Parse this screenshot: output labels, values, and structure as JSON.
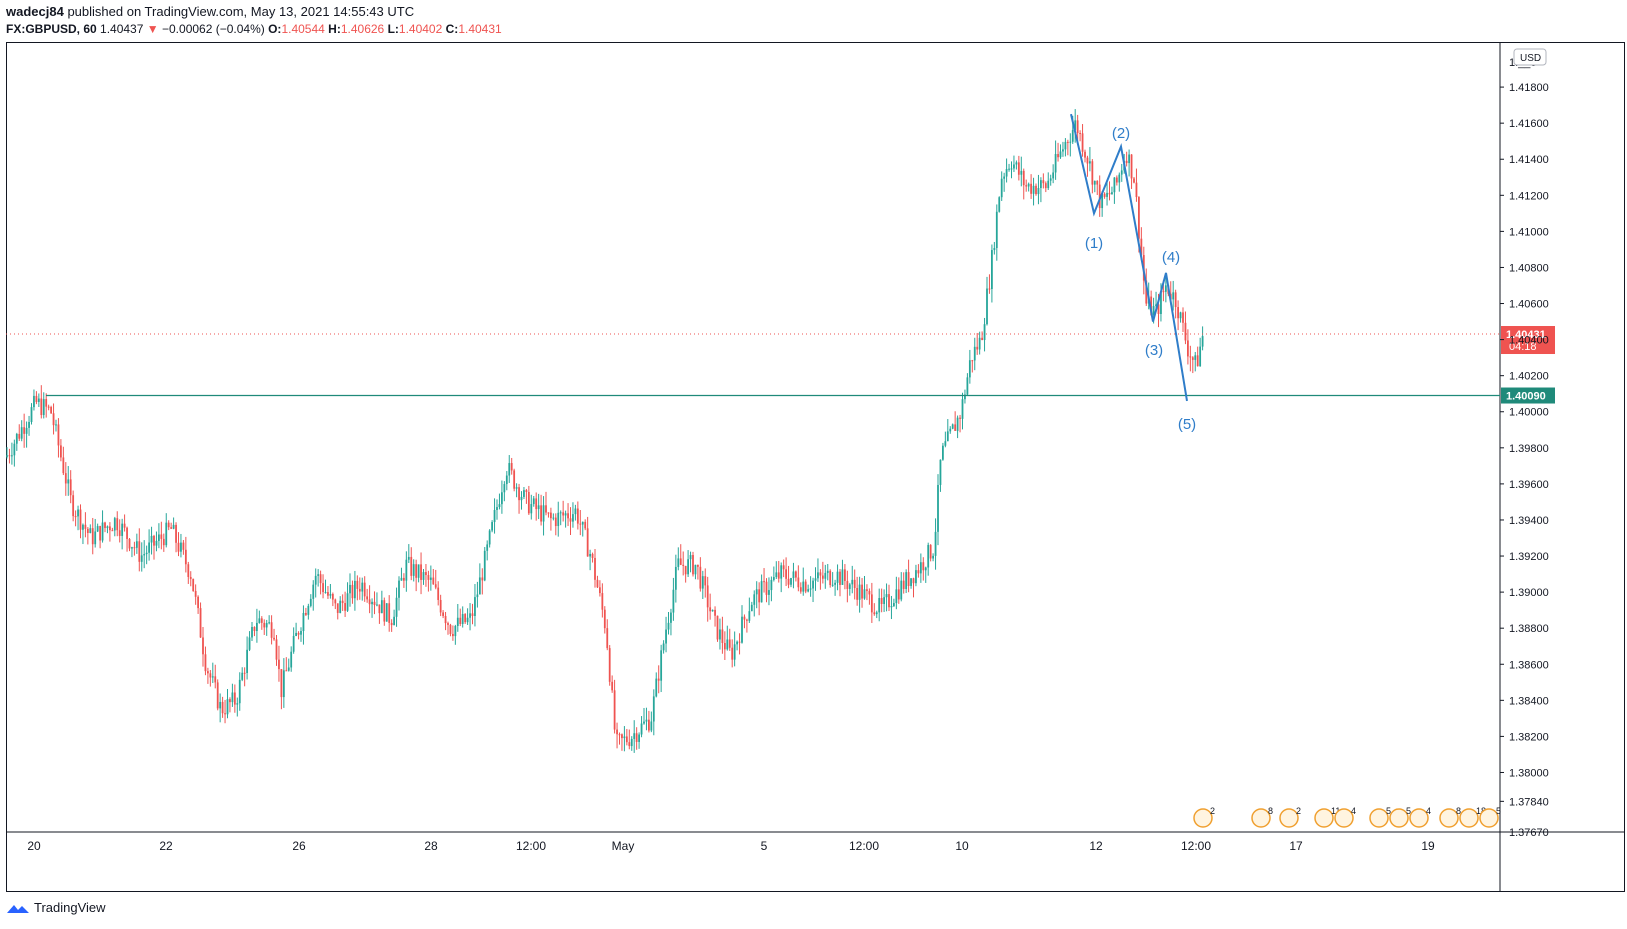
{
  "header": {
    "author": "wadecj84",
    "published_text": "published on TradingView.com, May 13, 2021 14:55:43 UTC",
    "symbol": "FX:GBPUSD, 60",
    "last": "1.40437",
    "arrow": "▼",
    "change": "−0.00062 (−0.04%)",
    "o_label": "O:",
    "o": "1.40544",
    "h_label": "H:",
    "h": "1.40626",
    "l_label": "L:",
    "l": "1.40402",
    "c_label": "C:",
    "c": "1.40431"
  },
  "footer": {
    "brand": "TradingView"
  },
  "colors": {
    "up": "#26a69a",
    "down": "#ef5350",
    "wave": "#2f7dc9",
    "support": "#1f8a7a",
    "price_line": "#ef5350"
  },
  "chart_data": {
    "type": "candlestick",
    "currency": "USD",
    "y_ticks": [
      "1.41800",
      "1.41600",
      "1.41400",
      "1.41200",
      "1.41000",
      "1.40800",
      "1.40600",
      "1.40400",
      "1.40200",
      "1.40000",
      "1.39800",
      "1.39600",
      "1.39400",
      "1.39200",
      "1.39000",
      "1.38800",
      "1.38600",
      "1.38400",
      "1.38200",
      "1.38000",
      "1.37840",
      "1.37670"
    ],
    "top_partial_tick": "1.__0",
    "ylim": [
      1.3767,
      1.4205
    ],
    "x_ticks": [
      "20",
      "22",
      "26",
      "28",
      "12:00",
      "May",
      "5",
      "12:00",
      "10",
      "12",
      "12:00",
      "17",
      "19"
    ],
    "current_price": {
      "value": 1.40431,
      "label": "1.40431",
      "countdown": "04:18"
    },
    "support_level": {
      "value": 1.4009,
      "label": "1.40090"
    },
    "wave_labels": [
      "(1)",
      "(2)",
      "(3)",
      "(4)",
      "(5)"
    ],
    "wave_path": [
      1.4165,
      1.411,
      1.4147,
      1.405,
      1.4077,
      1.4006
    ],
    "event_badges": [
      "2",
      "8",
      "2",
      "11",
      "4",
      "5",
      "5",
      "4",
      "8",
      "18",
      "5"
    ],
    "series_anchors": [
      [
        0,
        1.3975
      ],
      [
        30,
        1.4005
      ],
      [
        45,
        1.4
      ],
      [
        65,
        1.395
      ],
      [
        85,
        1.393
      ],
      [
        110,
        1.394
      ],
      [
        135,
        1.392
      ],
      [
        165,
        1.3935
      ],
      [
        185,
        1.391
      ],
      [
        200,
        1.386
      ],
      [
        215,
        1.3835
      ],
      [
        230,
        1.384
      ],
      [
        250,
        1.3885
      ],
      [
        268,
        1.388
      ],
      [
        275,
        1.3845
      ],
      [
        290,
        1.3875
      ],
      [
        310,
        1.391
      ],
      [
        330,
        1.389
      ],
      [
        355,
        1.3905
      ],
      [
        385,
        1.3885
      ],
      [
        400,
        1.3915
      ],
      [
        425,
        1.3905
      ],
      [
        445,
        1.388
      ],
      [
        465,
        1.3885
      ],
      [
        480,
        1.392
      ],
      [
        500,
        1.397
      ],
      [
        520,
        1.395
      ],
      [
        545,
        1.394
      ],
      [
        570,
        1.3945
      ],
      [
        585,
        1.392
      ],
      [
        600,
        1.388
      ],
      [
        610,
        1.3815
      ],
      [
        625,
        1.382
      ],
      [
        645,
        1.383
      ],
      [
        660,
        1.388
      ],
      [
        672,
        1.3915
      ],
      [
        690,
        1.3915
      ],
      [
        710,
        1.388
      ],
      [
        725,
        1.3865
      ],
      [
        745,
        1.3895
      ],
      [
        775,
        1.391
      ],
      [
        800,
        1.3905
      ],
      [
        830,
        1.391
      ],
      [
        855,
        1.39
      ],
      [
        875,
        1.389
      ],
      [
        890,
        1.39
      ],
      [
        915,
        1.3915
      ],
      [
        928,
        1.3925
      ],
      [
        935,
        1.3975
      ],
      [
        955,
        1.4
      ],
      [
        965,
        1.403
      ],
      [
        975,
        1.404
      ],
      [
        985,
        1.408
      ],
      [
        995,
        1.413
      ],
      [
        1005,
        1.414
      ],
      [
        1020,
        1.4125
      ],
      [
        1040,
        1.4125
      ],
      [
        1060,
        1.415
      ],
      [
        1070,
        1.416
      ],
      [
        1082,
        1.414
      ],
      [
        1095,
        1.4115
      ],
      [
        1110,
        1.4125
      ],
      [
        1120,
        1.4145
      ],
      [
        1128,
        1.413
      ],
      [
        1140,
        1.406
      ],
      [
        1150,
        1.4055
      ],
      [
        1160,
        1.407
      ],
      [
        1170,
        1.4062
      ],
      [
        1182,
        1.4035
      ],
      [
        1190,
        1.4025
      ],
      [
        1197,
        1.4043
      ]
    ]
  }
}
